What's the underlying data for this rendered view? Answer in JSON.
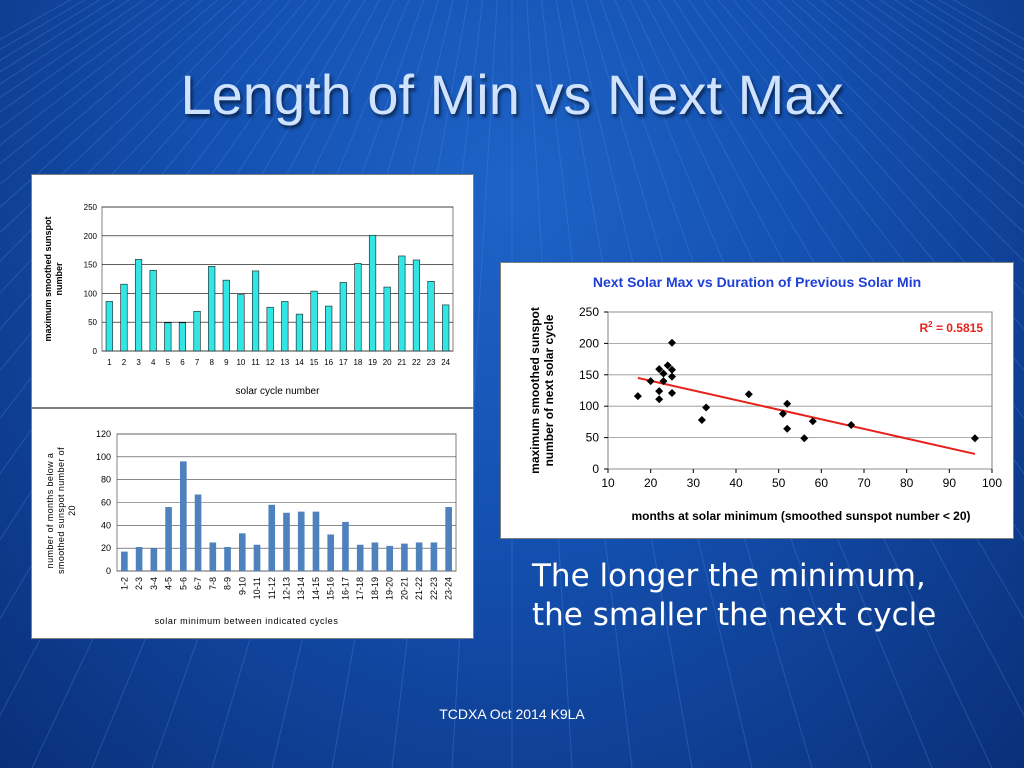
{
  "slide": {
    "title": "Length of Min vs Next Max",
    "caption_lines": [
      "The longer the minimum,",
      "the smaller the next cycle"
    ],
    "footer": "TCDXA Oct 2014 K9LA"
  },
  "chart_data": [
    {
      "type": "bar",
      "categories": [
        "1",
        "2",
        "3",
        "4",
        "5",
        "6",
        "7",
        "8",
        "9",
        "10",
        "11",
        "12",
        "13",
        "14",
        "15",
        "16",
        "17",
        "18",
        "19",
        "20",
        "21",
        "22",
        "23",
        "24"
      ],
      "values": [
        86,
        116,
        159,
        140,
        49,
        49,
        69,
        147,
        123,
        98,
        139,
        76,
        86,
        64,
        104,
        78,
        119,
        152,
        201,
        111,
        165,
        158,
        121,
        80
      ],
      "xlabel": "solar cycle number",
      "ylabel": "maximum smoothed sunspot number",
      "ylim": [
        0,
        250
      ],
      "yticks": [
        0,
        50,
        100,
        150,
        200,
        250
      ],
      "grid": true,
      "bar_color": "#33e6e6",
      "bar_edge": "#1a1a1a"
    },
    {
      "type": "bar",
      "categories": [
        "1-2",
        "2-3",
        "3-4",
        "4-5",
        "5-6",
        "6-7",
        "7-8",
        "8-9",
        "9-10",
        "10-11",
        "11-12",
        "12-13",
        "13-14",
        "14-15",
        "15-16",
        "16-17",
        "17-18",
        "18-19",
        "19-20",
        "20-21",
        "21-22",
        "22-23",
        "23-24"
      ],
      "values": [
        17,
        21,
        20,
        56,
        96,
        67,
        25,
        21,
        33,
        23,
        58,
        51,
        52,
        52,
        32,
        43,
        23,
        25,
        22,
        24,
        25,
        25,
        56
      ],
      "xlabel": "solar minimum between indicated cycles",
      "ylabel": "number of months below a smoothed sunspot number of 20",
      "ylim": [
        0,
        120
      ],
      "yticks": [
        0,
        20,
        40,
        60,
        80,
        100,
        120
      ],
      "grid": true,
      "bar_color": "#4f81bd"
    },
    {
      "type": "scatter",
      "title": "Next Solar Max vs Duration of Previous Solar Min",
      "xlabel": "months at solar minimum (smoothed sunspot number < 20)",
      "ylabel": "maximum smoothed sunspot number of next solar cycle",
      "xlim": [
        10,
        100
      ],
      "ylim": [
        0,
        250
      ],
      "xticks": [
        10,
        20,
        30,
        40,
        50,
        60,
        70,
        80,
        90,
        100
      ],
      "yticks": [
        0,
        50,
        100,
        150,
        200,
        250
      ],
      "grid": true,
      "points": [
        {
          "x": 17,
          "y": 116
        },
        {
          "x": 20,
          "y": 140
        },
        {
          "x": 22,
          "y": 159
        },
        {
          "x": 22,
          "y": 124
        },
        {
          "x": 22,
          "y": 111
        },
        {
          "x": 23,
          "y": 152
        },
        {
          "x": 23,
          "y": 140
        },
        {
          "x": 24,
          "y": 165
        },
        {
          "x": 25,
          "y": 158
        },
        {
          "x": 25,
          "y": 147
        },
        {
          "x": 25,
          "y": 121
        },
        {
          "x": 25,
          "y": 201
        },
        {
          "x": 32,
          "y": 78
        },
        {
          "x": 33,
          "y": 98
        },
        {
          "x": 43,
          "y": 119
        },
        {
          "x": 51,
          "y": 88
        },
        {
          "x": 52,
          "y": 104
        },
        {
          "x": 52,
          "y": 64
        },
        {
          "x": 56,
          "y": 49
        },
        {
          "x": 58,
          "y": 76
        },
        {
          "x": 67,
          "y": 70
        },
        {
          "x": 96,
          "y": 49
        }
      ],
      "trendline": {
        "x0": 17,
        "y0": 145,
        "x1": 96,
        "y1": 24,
        "color": "#e8201c"
      },
      "annotation": {
        "r_label": "R",
        "r_sup": "2",
        "r_value": " = 0.5815",
        "color": "#e8201c"
      },
      "title_color": "#1f3fd6"
    }
  ]
}
